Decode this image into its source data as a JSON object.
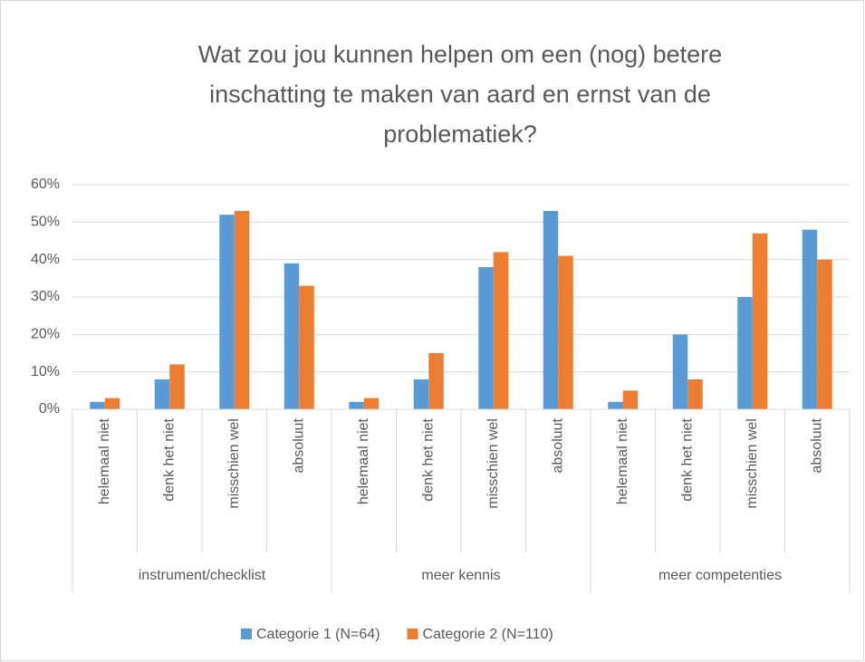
{
  "chart_data": {
    "type": "bar",
    "title": [
      "Wat zou jou kunnen helpen om een (nog) betere",
      "inschatting te maken van aard en ernst van de",
      "problematiek?"
    ],
    "categories": [
      "helemaal niet",
      "denk het niet",
      "misschien wel",
      "absoluut",
      "helemaal niet",
      "denk het niet",
      "misschien wel",
      "absoluut",
      "helemaal niet",
      "denk het niet",
      "misschien wel",
      "absoluut"
    ],
    "category_groups": [
      "instrument/checklist",
      "meer kennis",
      "meer competenties"
    ],
    "series": [
      {
        "name": "Categorie 1 (N=64)",
        "color": "#5b9bd5",
        "values": [
          2,
          8,
          52,
          39,
          2,
          8,
          38,
          53,
          2,
          20,
          30,
          48
        ]
      },
      {
        "name": "Categorie 2 (N=110)",
        "color": "#ed7d31",
        "values": [
          3,
          12,
          53,
          33,
          3,
          15,
          42,
          41,
          5,
          8,
          47,
          40
        ]
      }
    ],
    "ylim": [
      0,
      60
    ],
    "yticks": [
      {
        "value": 0,
        "label": "0%"
      },
      {
        "value": 10,
        "label": "10%"
      },
      {
        "value": 20,
        "label": "20%"
      },
      {
        "value": 30,
        "label": "30%"
      },
      {
        "value": 40,
        "label": "40%"
      },
      {
        "value": 50,
        "label": "50%"
      },
      {
        "value": 60,
        "label": "60%"
      }
    ],
    "grid": true,
    "legend": "bottom"
  }
}
